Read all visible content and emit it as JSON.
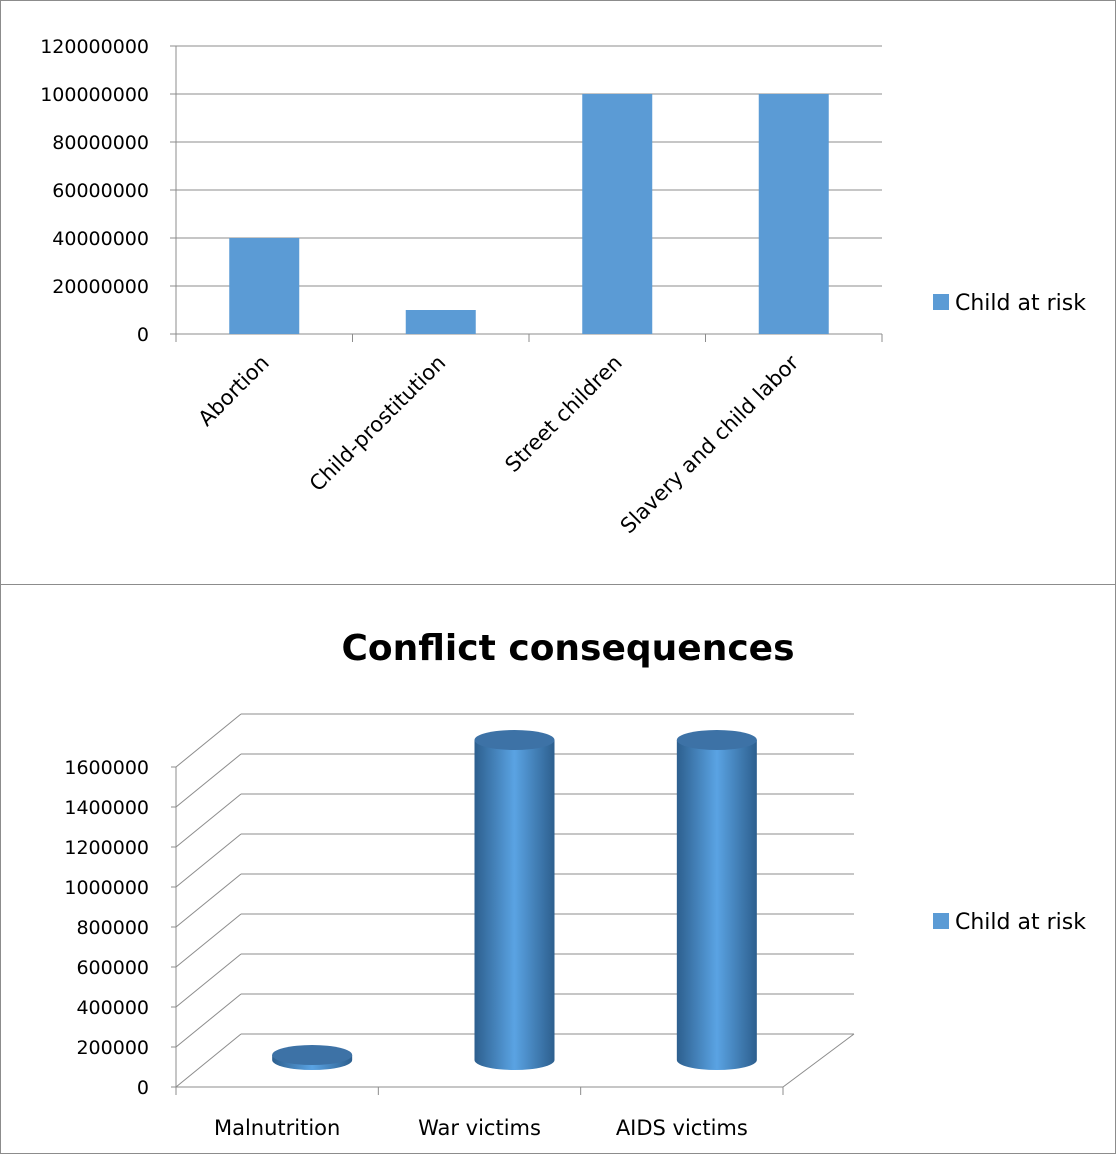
{
  "chart_data": [
    {
      "type": "bar",
      "title": "",
      "categories": [
        "Abortion",
        "Child-prostitution",
        "Street children",
        "Slavery and child labor"
      ],
      "series": [
        {
          "name": "Child at risk",
          "values": [
            40000000,
            10000000,
            100000000,
            100000000
          ]
        }
      ],
      "ylim": [
        0,
        120000000
      ],
      "yticks": [
        "0",
        "20000000",
        "40000000",
        "60000000",
        "80000000",
        "100000000",
        "120000000"
      ],
      "grid": true,
      "legend": "right",
      "color": "#5b9bd5"
    },
    {
      "type": "bar",
      "style": "3d-cylinder",
      "title": "Conflict consequences",
      "categories": [
        "Malnutrition",
        "War victims",
        "AIDS victims"
      ],
      "series": [
        {
          "name": "Child at risk",
          "values": [
            0,
            1600000,
            1600000
          ]
        }
      ],
      "ylim": [
        0,
        1600000
      ],
      "yticks": [
        "0",
        "200000",
        "400000",
        "600000",
        "800000",
        "1000000",
        "1200000",
        "1400000",
        "1600000"
      ],
      "grid": true,
      "legend": "right",
      "color": "#5b9bd5"
    }
  ]
}
